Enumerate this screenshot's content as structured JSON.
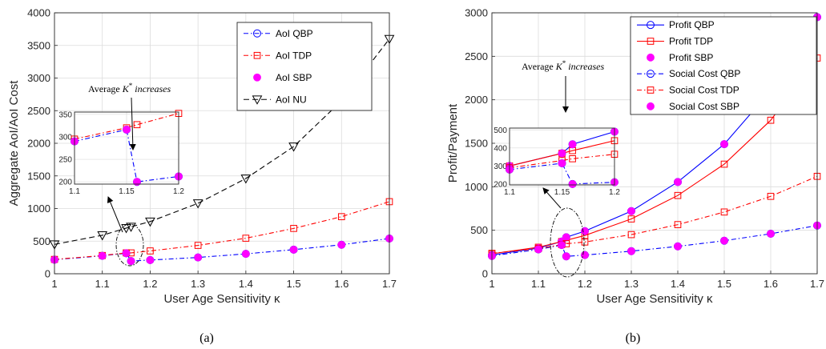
{
  "captions": [
    "(a)",
    "(b)"
  ],
  "chart_data": [
    {
      "type": "line",
      "xlabel": "User Age Sensitivity κ",
      "ylabel": "Aggregate AoI/AoI Cost",
      "xlim": [
        1,
        1.7
      ],
      "ylim": [
        0,
        4000
      ],
      "xticks": [
        "1",
        "1.1",
        "1.2",
        "1.3",
        "1.4",
        "1.5",
        "1.6",
        "1.7"
      ],
      "yticks": [
        "0",
        "500",
        "1000",
        "1500",
        "2000",
        "2500",
        "3000",
        "3500",
        "4000"
      ],
      "grid": true,
      "legend": "top-right",
      "series": [
        {
          "name": "AoI QBP",
          "color": "#0000ff",
          "dash": "6,3,1.5,3",
          "marker": "circle",
          "x": [
            1,
            1.1,
            1.15,
            1.16,
            1.2,
            1.3,
            1.4,
            1.5,
            1.6,
            1.7
          ],
          "y": [
            215,
            275,
            315,
            195,
            210,
            250,
            305,
            370,
            445,
            540
          ]
        },
        {
          "name": "AoI TDP",
          "color": "#ff0000",
          "dash": "6,3,1.5,3",
          "marker": "square",
          "x": [
            1,
            1.1,
            1.15,
            1.16,
            1.2,
            1.3,
            1.4,
            1.5,
            1.6,
            1.7
          ],
          "y": [
            220,
            280,
            320,
            320,
            350,
            435,
            545,
            695,
            875,
            1105
          ]
        },
        {
          "name": "AoI SBP",
          "color": "#ff00ff",
          "dash": "",
          "marker": "star",
          "x": [
            1,
            1.1,
            1.15,
            1.16,
            1.2,
            1.3,
            1.4,
            1.5,
            1.6,
            1.7
          ],
          "y": [
            215,
            275,
            315,
            195,
            210,
            250,
            305,
            370,
            445,
            540
          ]
        },
        {
          "name": "AoI NU",
          "color": "#000000",
          "dash": "7,4",
          "marker": "triangle",
          "x": [
            1,
            1.1,
            1.15,
            1.16,
            1.2,
            1.3,
            1.4,
            1.5,
            1.6,
            1.7
          ],
          "y": [
            450,
            590,
            700,
            720,
            800,
            1080,
            1460,
            1950,
            2650,
            3600
          ]
        }
      ],
      "inset": {
        "xlim": [
          1.1,
          1.2
        ],
        "ylim": [
          195,
          355
        ],
        "xticks": [
          "1.1",
          "1.15",
          "1.2"
        ],
        "yticks": [
          "200",
          "250",
          "300",
          "350"
        ],
        "series": [
          {
            "ref": 1,
            "x": [
              1.1,
              1.15,
              1.16,
              1.2
            ],
            "y": [
              295,
              320,
              327,
              352
            ]
          },
          {
            "ref": 0,
            "x": [
              1.1,
              1.15,
              1.16,
              1.2
            ],
            "y": [
              290,
              316,
              200,
              212
            ]
          },
          {
            "ref": 2,
            "x": [
              1.1,
              1.15,
              1.16,
              1.2
            ],
            "y": [
              290,
              316,
              200,
              212
            ]
          }
        ]
      },
      "annotation": {
        "prefix": "Average ",
        "symbol": "K",
        "suffix": " increases"
      }
    },
    {
      "type": "line",
      "xlabel": "User Age Sensitivity κ",
      "ylabel": "Profit/Payment",
      "xlim": [
        1,
        1.7
      ],
      "ylim": [
        0,
        3000
      ],
      "xticks": [
        "1",
        "1.1",
        "1.2",
        "1.3",
        "1.4",
        "1.5",
        "1.6",
        "1.7"
      ],
      "yticks": [
        "0",
        "500",
        "1000",
        "1500",
        "2000",
        "2500",
        "3000"
      ],
      "grid": true,
      "legend": "top-right",
      "series": [
        {
          "name": "Profit QBP",
          "color": "#0000ff",
          "dash": "",
          "marker": "circle",
          "x": [
            1,
            1.1,
            1.15,
            1.16,
            1.2,
            1.3,
            1.4,
            1.5,
            1.6,
            1.7
          ],
          "y": [
            215,
            295,
            370,
            420,
            490,
            720,
            1055,
            1490,
            2105,
            2950
          ]
        },
        {
          "name": "Profit TDP",
          "color": "#ff0000",
          "dash": "",
          "marker": "square",
          "x": [
            1,
            1.1,
            1.15,
            1.16,
            1.2,
            1.3,
            1.4,
            1.5,
            1.6,
            1.7
          ],
          "y": [
            230,
            305,
            370,
            385,
            440,
            630,
            900,
            1260,
            1765,
            2480
          ]
        },
        {
          "name": "Profit SBP",
          "color": "#ff00ff",
          "dash": "",
          "marker": "star",
          "x": [
            1,
            1.1,
            1.15,
            1.16,
            1.2,
            1.3,
            1.4,
            1.5,
            1.6,
            1.7
          ],
          "y": [
            215,
            295,
            370,
            420,
            490,
            720,
            1055,
            1490,
            2105,
            2950
          ]
        },
        {
          "name": "Social Cost QBP",
          "color": "#0000ff",
          "dash": "6,3,1.5,3",
          "marker": "circle",
          "x": [
            1,
            1.1,
            1.15,
            1.16,
            1.2,
            1.3,
            1.4,
            1.5,
            1.6,
            1.7
          ],
          "y": [
            205,
            280,
            330,
            200,
            215,
            260,
            315,
            380,
            460,
            555
          ]
        },
        {
          "name": "Social Cost TDP",
          "color": "#ff0000",
          "dash": "6,3,1.5,3",
          "marker": "square",
          "x": [
            1,
            1.1,
            1.15,
            1.16,
            1.2,
            1.3,
            1.4,
            1.5,
            1.6,
            1.7
          ],
          "y": [
            235,
            290,
            335,
            345,
            365,
            450,
            565,
            710,
            890,
            1120
          ]
        },
        {
          "name": "Social Cost SBP",
          "color": "#ff00ff",
          "dash": "",
          "marker": "star",
          "x": [
            1,
            1.1,
            1.15,
            1.16,
            1.2,
            1.3,
            1.4,
            1.5,
            1.6,
            1.7
          ],
          "y": [
            205,
            280,
            330,
            200,
            215,
            260,
            315,
            380,
            460,
            555
          ]
        }
      ],
      "inset": {
        "xlim": [
          1.1,
          1.2
        ],
        "ylim": [
          195,
          510
        ],
        "xticks": [
          "1.1",
          "1.15",
          "1.2"
        ],
        "yticks": [
          "200",
          "300",
          "400",
          "500"
        ],
        "series": [
          {
            "ref": 0,
            "x": [
              1.1,
              1.15,
              1.16,
              1.2
            ],
            "y": [
              300,
              370,
              420,
              490
            ]
          },
          {
            "ref": 1,
            "x": [
              1.1,
              1.15,
              1.16,
              1.2
            ],
            "y": [
              300,
              370,
              385,
              440
            ]
          },
          {
            "ref": 2,
            "x": [
              1.1,
              1.15,
              1.16,
              1.2
            ],
            "y": [
              300,
              370,
              420,
              490
            ]
          },
          {
            "ref": 4,
            "x": [
              1.1,
              1.15,
              1.16,
              1.2
            ],
            "y": [
              290,
              330,
              340,
              365
            ]
          },
          {
            "ref": 3,
            "x": [
              1.1,
              1.15,
              1.16,
              1.2
            ],
            "y": [
              280,
              315,
              200,
              210
            ]
          },
          {
            "ref": 5,
            "x": [
              1.1,
              1.15,
              1.16,
              1.2
            ],
            "y": [
              280,
              315,
              200,
              210
            ]
          }
        ]
      },
      "annotation": {
        "prefix": "Average ",
        "symbol": "K",
        "suffix": " increases"
      }
    }
  ]
}
